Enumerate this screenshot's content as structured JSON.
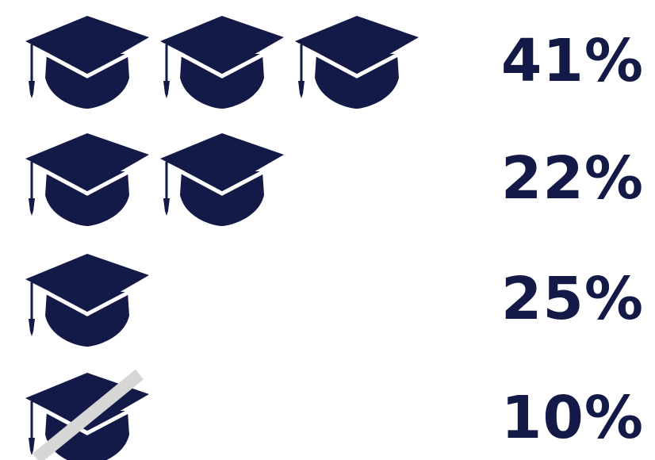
{
  "chart_data": {
    "type": "pictograph",
    "icon": "graduation-cap-icon",
    "colors": {
      "icon": "#141a48",
      "text": "#141a48",
      "strike": "#d6d6d6"
    },
    "rows": [
      {
        "caps": 3,
        "struck": false,
        "label": "41%",
        "value": 41
      },
      {
        "caps": 2,
        "struck": false,
        "label": "22%",
        "value": 22
      },
      {
        "caps": 1,
        "struck": false,
        "label": "25%",
        "value": 25
      },
      {
        "caps": 1,
        "struck": true,
        "label": "10%",
        "value": 10
      }
    ]
  }
}
